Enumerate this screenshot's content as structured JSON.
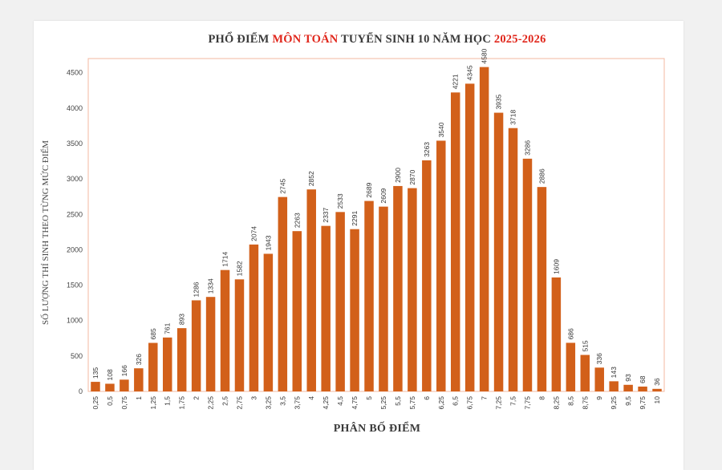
{
  "colors": {
    "bar": "#d2601a",
    "plot_border": "#f3b9a2",
    "title_accent": "#e0261b",
    "title_text": "#3a3a3a"
  },
  "chart_data": {
    "type": "bar",
    "title_parts": [
      "PHỔ ĐIỂM ",
      "MÔN TOÁN",
      " TUYỂN SINH 10 NĂM HỌC ",
      "2025-2026"
    ],
    "title": "PHỔ ĐIỂM MÔN TOÁN TUYỂN SINH 10 NĂM HỌC 2025-2026",
    "xlabel": "PHÂN BỐ ĐIỂM",
    "ylabel": "SỐ LƯỢNG THÍ SINH THEO TỪNG MỨC ĐIỂM",
    "ylim": [
      0,
      4700
    ],
    "yticks": [
      0,
      500,
      1000,
      1500,
      2000,
      2500,
      3000,
      3500,
      4000,
      4500
    ],
    "categories": [
      "0,25",
      "0,5",
      "0,75",
      "1",
      "1,25",
      "1,5",
      "1,75",
      "2",
      "2,25",
      "2,5",
      "2,75",
      "3",
      "3,25",
      "3,5",
      "3,75",
      "4",
      "4,25",
      "4,5",
      "4,75",
      "5",
      "5,25",
      "5,5",
      "5,75",
      "6",
      "6,25",
      "6,5",
      "6,75",
      "7",
      "7,25",
      "7,5",
      "7,75",
      "8",
      "8,25",
      "8,5",
      "8,75",
      "9",
      "9,25",
      "9,5",
      "9,75",
      "10"
    ],
    "values": [
      135,
      108,
      166,
      326,
      685,
      761,
      893,
      1286,
      1334,
      1714,
      1582,
      2074,
      1943,
      2745,
      2263,
      2852,
      2337,
      2533,
      2291,
      2689,
      2609,
      2900,
      2870,
      3263,
      3540,
      4221,
      4345,
      4580,
      3935,
      3718,
      3286,
      2886,
      1609,
      686,
      515,
      336,
      143,
      93,
      68,
      36
    ]
  }
}
